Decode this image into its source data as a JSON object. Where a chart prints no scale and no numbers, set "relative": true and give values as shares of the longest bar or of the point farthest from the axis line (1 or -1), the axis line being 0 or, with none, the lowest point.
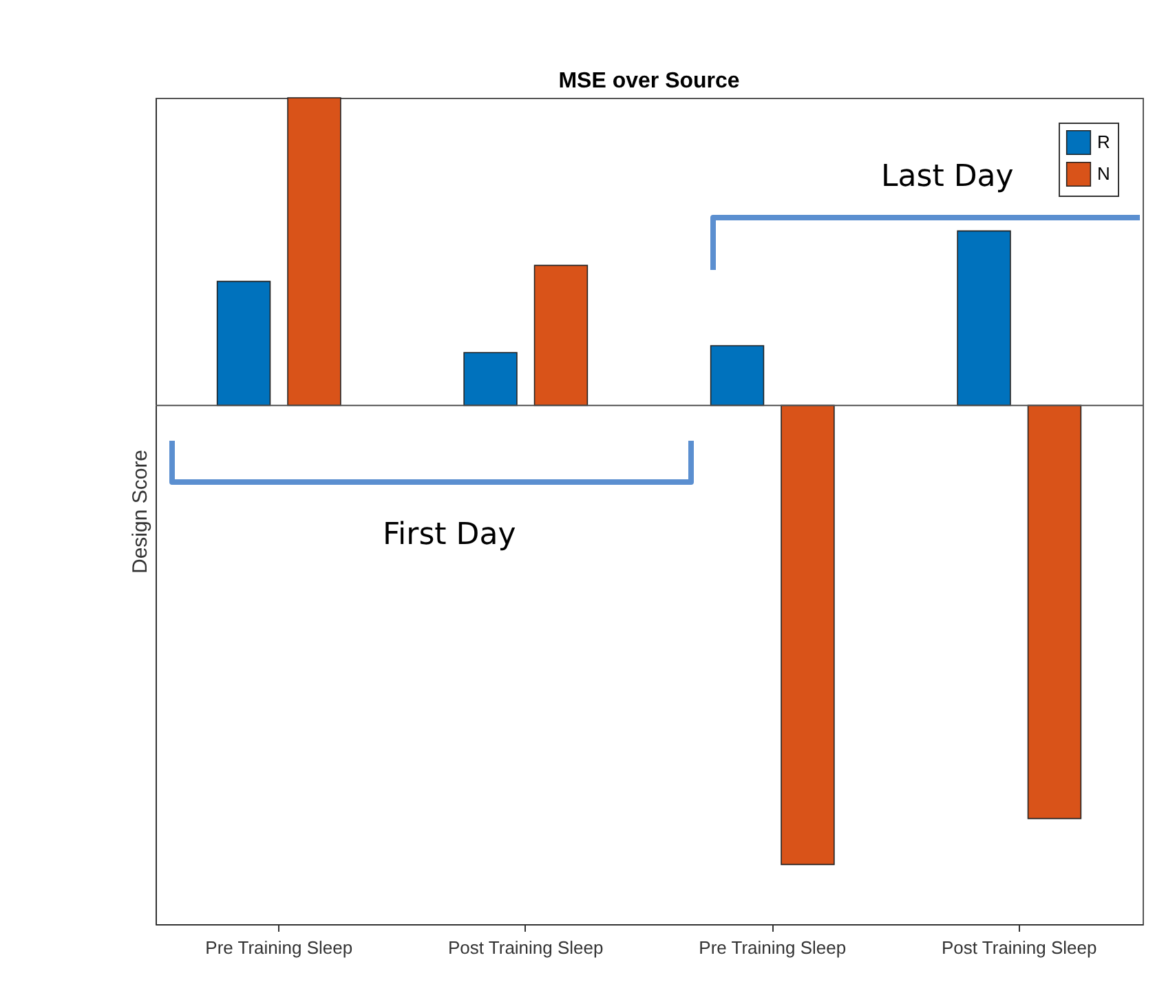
{
  "chart_data": {
    "type": "bar",
    "title": "MSE over Source",
    "ylabel": "Design Score",
    "categories": [
      "Pre Training Sleep",
      "Post Training Sleep",
      "Pre Training Sleep",
      "Post Training Sleep"
    ],
    "relative": true,
    "series": [
      {
        "name": "R",
        "color": "#0072bd",
        "values": [
          0.27,
          0.115,
          0.13,
          0.38
        ]
      },
      {
        "name": "N",
        "color": "#d95319",
        "values": [
          0.67,
          0.305,
          -1,
          -0.9
        ]
      }
    ],
    "annotations": [
      "First Day",
      "Last Day"
    ],
    "legend": "top right",
    "grid": false
  }
}
